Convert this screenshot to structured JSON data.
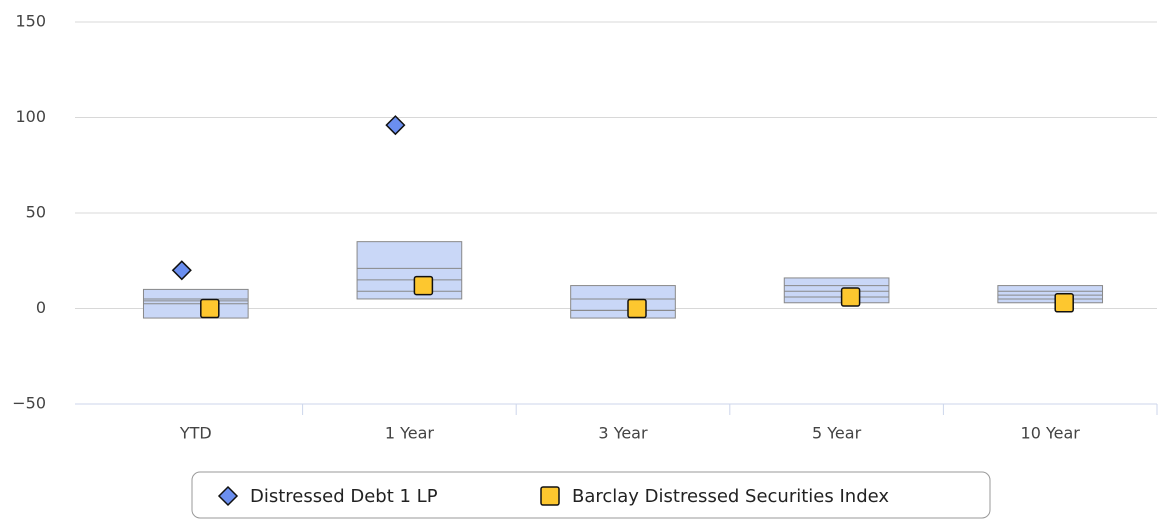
{
  "chart_data": {
    "type": "boxscatter",
    "categories": [
      "YTD",
      "1 Year",
      "3 Year",
      "5 Year",
      "10 Year"
    ],
    "boxes": {
      "color": "#c9d7f7",
      "high": [
        10,
        35,
        12,
        16,
        12
      ],
      "q3": [
        5,
        21,
        5,
        12,
        9
      ],
      "median": [
        4,
        15,
        -1,
        9,
        7
      ],
      "q1": [
        2.5,
        9,
        -1,
        6,
        5
      ],
      "low": [
        -5,
        5,
        -5,
        3,
        3
      ]
    },
    "series": [
      {
        "name": "Distressed Debt 1 LP",
        "color": "#6b8ff0",
        "marker": "diamond",
        "values": [
          20,
          96,
          null,
          null,
          null
        ]
      },
      {
        "name": "Barclay Distressed Securities Index",
        "color": "#fdc72f",
        "marker": "square",
        "values": [
          0,
          12,
          0,
          6,
          3
        ]
      }
    ],
    "ylim": [
      -50,
      150
    ],
    "yticks": [
      {
        "value": -50,
        "label": "−50"
      },
      0,
      50,
      100,
      150
    ],
    "grid": true
  }
}
